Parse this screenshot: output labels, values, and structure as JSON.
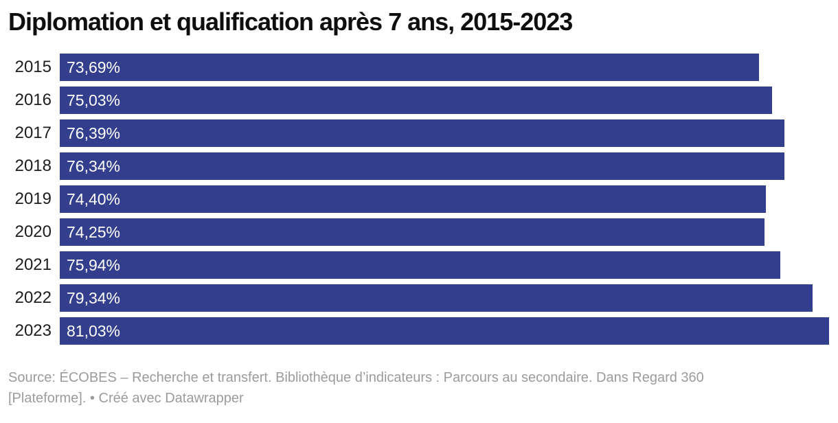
{
  "title": "Diplomation et qualification après 7 ans, 2015-2023",
  "chart_data": {
    "type": "bar",
    "orientation": "horizontal",
    "title": "Diplomation et qualification après 7 ans, 2015-2023",
    "categories": [
      "2015",
      "2016",
      "2017",
      "2018",
      "2019",
      "2020",
      "2021",
      "2022",
      "2023"
    ],
    "values": [
      73.69,
      75.03,
      76.39,
      76.34,
      74.4,
      74.25,
      75.94,
      79.34,
      81.03
    ],
    "value_labels": [
      "73,69%",
      "75,03%",
      "76,39%",
      "76,34%",
      "74,40%",
      "74,25%",
      "75,94%",
      "79,34%",
      "81,03%"
    ],
    "xlabel": "",
    "ylabel": "",
    "xlim": [
      0,
      82
    ],
    "grid": false,
    "legend": false,
    "bar_color": "#333e8c",
    "value_label_color": "#ffffff",
    "category_label_color": "#1d1d1d"
  },
  "footer": {
    "line1": "Source: ÉCOBES – Recherche et transfert. Bibliothèque d’indicateurs : Parcours au secondaire. Dans Regard 360",
    "line2_prefix": "[Plateforme]. • ",
    "credit": "Créé avec Datawrapper"
  },
  "colors": {
    "background": "#ffffff",
    "bar": "#333e8c",
    "title_text": "#0e0e0e",
    "footer_text": "#9b9b9b"
  }
}
